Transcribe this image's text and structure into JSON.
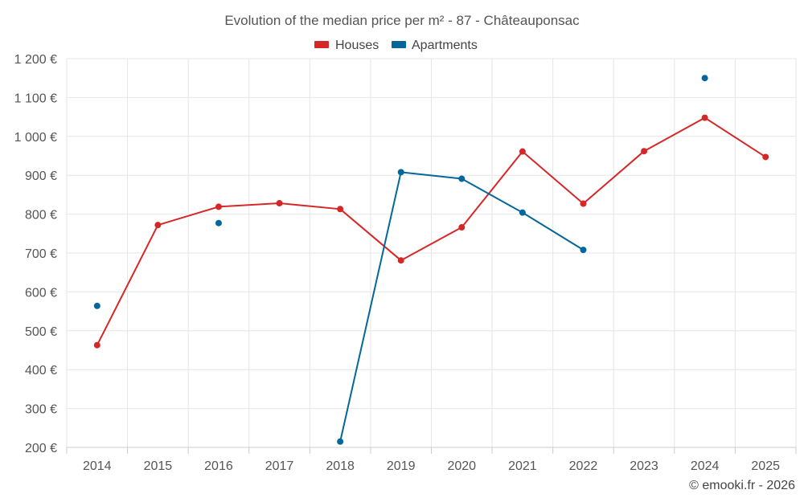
{
  "chart_data": {
    "type": "line",
    "title": "Evolution of the median price per m² - 87 - Châteauponsac",
    "xlabel": "",
    "ylabel": "",
    "ylim": [
      200,
      1200
    ],
    "y_ticks": [
      200,
      300,
      400,
      500,
      600,
      700,
      800,
      900,
      1000,
      1100,
      1200
    ],
    "y_tick_labels": [
      "200 €",
      "300 €",
      "400 €",
      "500 €",
      "600 €",
      "700 €",
      "800 €",
      "900 €",
      "1 000 €",
      "1 100 €",
      "1 200 €"
    ],
    "categories": [
      "2014",
      "2015",
      "2016",
      "2017",
      "2018",
      "2019",
      "2020",
      "2021",
      "2022",
      "2023",
      "2024",
      "2025"
    ],
    "grid": true,
    "legend_position": "top-center",
    "series": [
      {
        "name": "Houses",
        "color": "#d62728",
        "values": [
          463,
          772,
          819,
          828,
          813,
          681,
          766,
          961,
          827,
          962,
          1048,
          947
        ]
      },
      {
        "name": "Apartments",
        "color": "#04679c",
        "values": [
          564,
          null,
          777,
          null,
          215,
          908,
          891,
          804,
          708,
          null,
          1150,
          null
        ]
      }
    ]
  },
  "credit": "© emooki.fr - 2026"
}
